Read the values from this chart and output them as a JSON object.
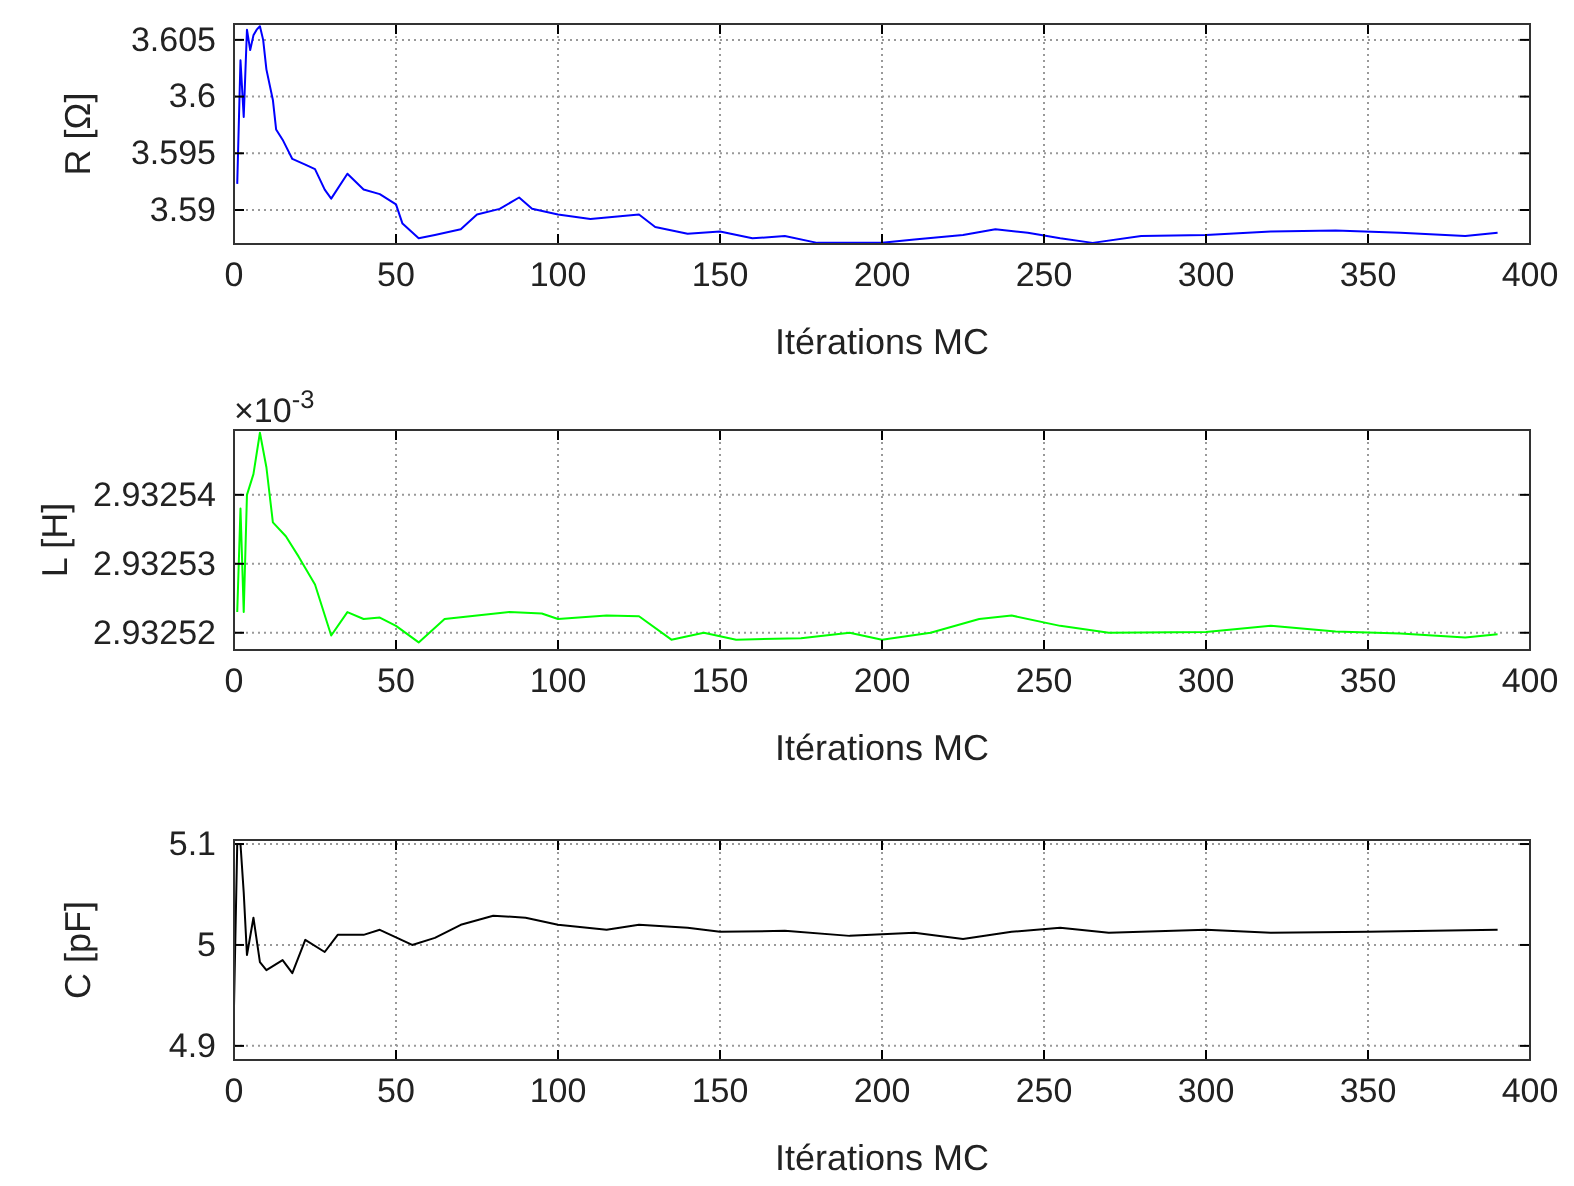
{
  "chart_data": [
    {
      "type": "line",
      "xlabel": "Itérations MC",
      "ylabel": "R [Ω]",
      "grid": true,
      "xlim": [
        0,
        400
      ],
      "ylim": [
        3.587,
        3.6064
      ],
      "xticks": [
        0,
        50,
        100,
        150,
        200,
        250,
        300,
        350,
        400
      ],
      "yticks": [
        3.59,
        3.595,
        3.6,
        3.605
      ],
      "x": [
        1,
        2,
        3,
        4,
        5,
        6,
        7,
        8,
        9,
        10,
        12,
        13,
        15,
        18,
        22,
        25,
        28,
        30,
        35,
        40,
        45,
        50,
        52,
        57,
        62,
        70,
        75,
        82,
        88,
        92,
        100,
        110,
        125,
        130,
        140,
        150,
        160,
        170,
        180,
        200,
        210,
        225,
        235,
        245,
        255,
        265,
        280,
        300,
        320,
        340,
        360,
        380,
        390
      ],
      "series": [
        {
          "color": "#0000ff",
          "values": [
            3.5923,
            3.6032,
            3.5982,
            3.6059,
            3.6041,
            3.6054,
            3.6059,
            3.6062,
            3.605,
            3.6024,
            3.5997,
            3.5971,
            3.5962,
            3.5945,
            3.594,
            3.5936,
            3.5918,
            3.591,
            3.5932,
            3.5918,
            3.5914,
            3.5905,
            3.5888,
            3.5875,
            3.5878,
            3.5883,
            3.5896,
            3.5901,
            3.5911,
            3.5901,
            3.5896,
            3.5892,
            3.5896,
            3.5885,
            3.5879,
            3.5881,
            3.5875,
            3.5877,
            3.5871,
            3.5871,
            3.5874,
            3.5878,
            3.5883,
            3.588,
            3.5875,
            3.5871,
            3.5877,
            3.5878,
            3.5881,
            3.5882,
            3.588,
            3.5877,
            3.588
          ]
        }
      ]
    },
    {
      "type": "line",
      "xlabel": "Itérations MC",
      "ylabel": "L [H]",
      "annotations": [
        "×10$^{-3}$"
      ],
      "grid": true,
      "xlim": [
        0,
        400
      ],
      "ylim": [
        2.9325175,
        2.9325494
      ],
      "xticks": [
        0,
        50,
        100,
        150,
        200,
        250,
        300,
        350,
        400
      ],
      "yticks": [
        2.93252,
        2.93253,
        2.93254
      ],
      "x": [
        1,
        2,
        3,
        4,
        6,
        8,
        10,
        12,
        16,
        20,
        25,
        30,
        35,
        40,
        45,
        50,
        57,
        65,
        75,
        85,
        95,
        100,
        115,
        125,
        135,
        145,
        155,
        175,
        190,
        200,
        215,
        230,
        240,
        255,
        270,
        300,
        320,
        340,
        360,
        380,
        390
      ],
      "series": [
        {
          "color": "#00ff00",
          "values": [
            2.932523,
            2.932538,
            2.932523,
            2.93254,
            2.932543,
            2.932549,
            2.932544,
            2.932536,
            2.932534,
            2.932531,
            2.932527,
            2.9325196,
            2.932523,
            2.932522,
            2.9325222,
            2.932521,
            2.9325186,
            2.932522,
            2.9325225,
            2.932523,
            2.9325228,
            2.932522,
            2.9325225,
            2.9325224,
            2.932519,
            2.93252,
            2.932519,
            2.9325192,
            2.93252,
            2.932519,
            2.93252,
            2.932522,
            2.9325225,
            2.932521,
            2.93252,
            2.9325201,
            2.932521,
            2.9325202,
            2.9325199,
            2.9325193,
            2.9325198
          ]
        }
      ]
    },
    {
      "type": "line",
      "xlabel": "Itérations MC",
      "ylabel": "C [pF]",
      "grid": true,
      "xlim": [
        0,
        400
      ],
      "ylim": [
        4.886,
        5.104
      ],
      "xticks": [
        0,
        50,
        100,
        150,
        200,
        250,
        300,
        350,
        400
      ],
      "yticks": [
        4.9,
        5,
        5.1
      ],
      "x": [
        0,
        1,
        2,
        3,
        4,
        6,
        8,
        10,
        15,
        18,
        22,
        28,
        32,
        40,
        45,
        55,
        62,
        70,
        80,
        90,
        100,
        115,
        125,
        140,
        150,
        170,
        190,
        210,
        225,
        240,
        255,
        270,
        300,
        320,
        350,
        370,
        390
      ],
      "series": [
        {
          "color": "#000000",
          "values": [
            4.939,
            5.1,
            5.1,
            5.052,
            4.99,
            5.027,
            4.983,
            4.975,
            4.985,
            4.972,
            5.005,
            4.993,
            5.01,
            5.01,
            5.015,
            5.0,
            5.007,
            5.02,
            5.029,
            5.027,
            5.02,
            5.015,
            5.02,
            5.017,
            5.013,
            5.014,
            5.009,
            5.012,
            5.006,
            5.013,
            5.017,
            5.012,
            5.015,
            5.012,
            5.013,
            5.014,
            5.015
          ]
        }
      ]
    }
  ]
}
